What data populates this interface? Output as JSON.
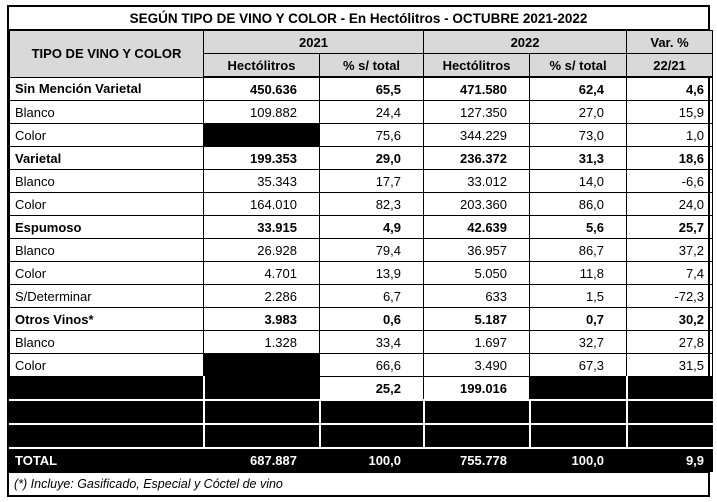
{
  "title": "SEGÚN TIPO DE VINO Y COLOR - En Hectólitros - OCTUBRE 2021-2022",
  "table": {
    "header": {
      "tipo": "TIPO DE VINO Y COLOR",
      "year_2021": "2021",
      "year_2022": "2022",
      "var_pct": "Var. %",
      "sub": [
        "Hectólitros",
        "% s/ total",
        "Hectólitros",
        "% s/ total",
        "22/21"
      ]
    },
    "rows": [
      {
        "label": "Sin Mención Varietal",
        "bold": true,
        "cells": [
          "450.636",
          "65,5",
          "471.580",
          "62,4",
          "4,6"
        ]
      },
      {
        "label": "Blanco",
        "bold": false,
        "cells": [
          "109.882",
          "24,4",
          "127.350",
          "27,0",
          "15,9"
        ]
      },
      {
        "label": "Color",
        "bold": false,
        "cells": [
          null,
          "75,6",
          "344.229",
          "73,0",
          "1,0"
        ]
      },
      {
        "label": "Varietal",
        "bold": true,
        "cells": [
          "199.353",
          "29,0",
          "236.372",
          "31,3",
          "18,6"
        ]
      },
      {
        "label": "Blanco",
        "bold": false,
        "cells": [
          "35.343",
          "17,7",
          "33.012",
          "14,0",
          "-6,6"
        ]
      },
      {
        "label": "Color",
        "bold": false,
        "cells": [
          "164.010",
          "82,3",
          "203.360",
          "86,0",
          "24,0"
        ]
      },
      {
        "label": "Espumoso",
        "bold": true,
        "cells": [
          "33.915",
          "4,9",
          "42.639",
          "5,6",
          "25,7"
        ]
      },
      {
        "label": "Blanco",
        "bold": false,
        "cells": [
          "26.928",
          "79,4",
          "36.957",
          "86,7",
          "37,2"
        ]
      },
      {
        "label": "Color",
        "bold": false,
        "cells": [
          "4.701",
          "13,9",
          "5.050",
          "11,8",
          "7,4"
        ]
      },
      {
        "label": "S/Determinar",
        "bold": false,
        "cells": [
          "2.286",
          "6,7",
          "633",
          "1,5",
          "-72,3"
        ]
      },
      {
        "label": "Otros Vinos*",
        "bold": true,
        "cells": [
          "3.983",
          "0,6",
          "5.187",
          "0,7",
          "30,2"
        ]
      },
      {
        "label": "Blanco",
        "bold": false,
        "cells": [
          "1.328",
          "33,4",
          "1.697",
          "32,7",
          "27,8"
        ]
      },
      {
        "label": "Color",
        "bold": false,
        "cells": [
          null,
          "66,6",
          "3.490",
          "67,3",
          "31,5"
        ]
      },
      {
        "label": null,
        "bold": true,
        "cells": [
          null,
          "25,2",
          "199.016",
          null,
          null
        ]
      },
      {
        "label": null,
        "bold": false,
        "cells": [
          null,
          null,
          null,
          null,
          null
        ]
      },
      {
        "label": null,
        "bold": false,
        "cells": [
          null,
          null,
          null,
          null,
          null
        ]
      }
    ],
    "total": {
      "label": "TOTAL",
      "cells": [
        "687.887",
        "100,0",
        "755.778",
        "100,0",
        "9,9"
      ]
    }
  },
  "footnote": "(*) Incluye: Gasificado, Especial y Cóctel de vino",
  "colors": {
    "header_bg": "#d9d9d9",
    "redacted_fill": "#000000",
    "total_bg": "#000000",
    "total_text": "#ffffff",
    "border": "#000000"
  }
}
